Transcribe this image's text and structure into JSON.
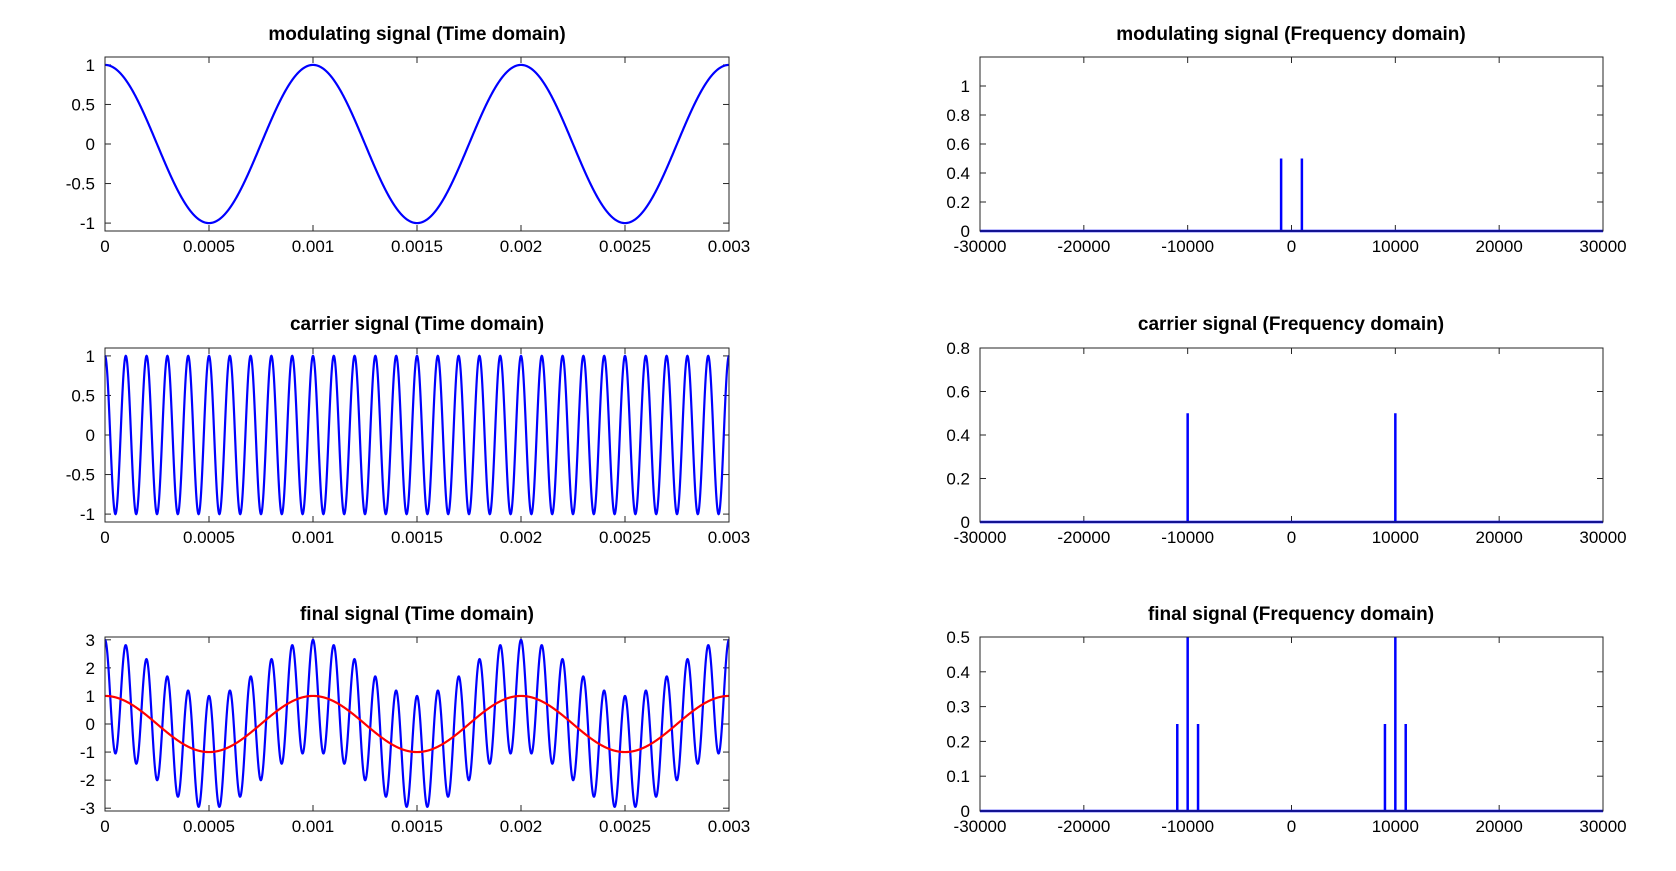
{
  "chart_data": [
    {
      "type": "line",
      "title": "modulating signal (Time domain)",
      "xlim": [
        0,
        0.003
      ],
      "ylim": [
        -1.1,
        1.1
      ],
      "x_ticks": [
        "0",
        "0.0005",
        "0.001",
        "0.0015",
        "0.002",
        "0.0025",
        "0.003"
      ],
      "y_ticks": [
        "1",
        "0.5",
        "0",
        "-0.5",
        "-1"
      ],
      "series": [
        {
          "color": "#0000ff",
          "function": "cosine",
          "amplitude": 1,
          "frequency_hz": 1000,
          "x_range": [
            0,
            0.003
          ]
        }
      ]
    },
    {
      "type": "line",
      "title": "modulating signal (Frequency domain)",
      "xlim": [
        -30000,
        30000
      ],
      "ylim": [
        0,
        1.2
      ],
      "x_ticks": [
        "-30000",
        "-20000",
        "-10000",
        "0",
        "10000",
        "20000",
        "30000"
      ],
      "y_ticks": [
        "1",
        "0.8",
        "0.6",
        "0.4",
        "0.2",
        "0"
      ],
      "series": [
        {
          "color": "#0000ff",
          "baseline": 0,
          "impulses": [
            {
              "x": -1000,
              "y": 0.5
            },
            {
              "x": 1000,
              "y": 0.5
            }
          ]
        }
      ]
    },
    {
      "type": "line",
      "title": "carrier signal (Time domain)",
      "xlim": [
        0,
        0.003
      ],
      "ylim": [
        -1.1,
        1.1
      ],
      "x_ticks": [
        "0",
        "0.0005",
        "0.001",
        "0.0015",
        "0.002",
        "0.0025",
        "0.003"
      ],
      "y_ticks": [
        "1",
        "0.5",
        "0",
        "-0.5",
        "-1"
      ],
      "series": [
        {
          "color": "#0000ff",
          "function": "cosine",
          "amplitude": 1,
          "frequency_hz": 10000,
          "x_range": [
            0,
            0.003
          ]
        }
      ]
    },
    {
      "type": "line",
      "title": "carrier signal (Frequency domain)",
      "xlim": [
        -30000,
        30000
      ],
      "ylim": [
        0,
        0.8
      ],
      "x_ticks": [
        "-30000",
        "-20000",
        "-10000",
        "0",
        "10000",
        "20000",
        "30000"
      ],
      "y_ticks": [
        "0.8",
        "0.6",
        "0.4",
        "0.2",
        "0"
      ],
      "series": [
        {
          "color": "#0000ff",
          "baseline": 0,
          "impulses": [
            {
              "x": -10000,
              "y": 0.5
            },
            {
              "x": 10000,
              "y": 0.5
            }
          ]
        }
      ]
    },
    {
      "type": "line",
      "title": "final signal (Time domain)",
      "xlim": [
        0,
        0.003
      ],
      "ylim": [
        -3.1,
        3.1
      ],
      "x_ticks": [
        "0",
        "0.0005",
        "0.001",
        "0.0015",
        "0.002",
        "0.0025",
        "0.003"
      ],
      "y_ticks": [
        "3",
        "2",
        "1",
        "0",
        "-1",
        "-2",
        "-3"
      ],
      "series": [
        {
          "color": "#0000ff",
          "function": "am",
          "carrier_hz": 10000,
          "modulating_hz": 1000,
          "offset": 2,
          "x_range": [
            0,
            0.003
          ]
        },
        {
          "color": "#ff0000",
          "function": "cosine",
          "amplitude": 1,
          "frequency_hz": 1000,
          "x_range": [
            0,
            0.003
          ]
        }
      ]
    },
    {
      "type": "line",
      "title": "final signal (Frequency domain)",
      "xlim": [
        -30000,
        30000
      ],
      "ylim": [
        0,
        0.5
      ],
      "x_ticks": [
        "-30000",
        "-20000",
        "-10000",
        "0",
        "10000",
        "20000",
        "30000"
      ],
      "y_ticks": [
        "0.5",
        "0.4",
        "0.3",
        "0.2",
        "0.1",
        "0"
      ],
      "series": [
        {
          "color": "#0000ff",
          "baseline": 0,
          "impulses": [
            {
              "x": -11000,
              "y": 0.25
            },
            {
              "x": -10000,
              "y": 0.5
            },
            {
              "x": -9000,
              "y": 0.25
            },
            {
              "x": 9000,
              "y": 0.25
            },
            {
              "x": 10000,
              "y": 0.5
            },
            {
              "x": 11000,
              "y": 0.25
            }
          ]
        }
      ]
    }
  ]
}
